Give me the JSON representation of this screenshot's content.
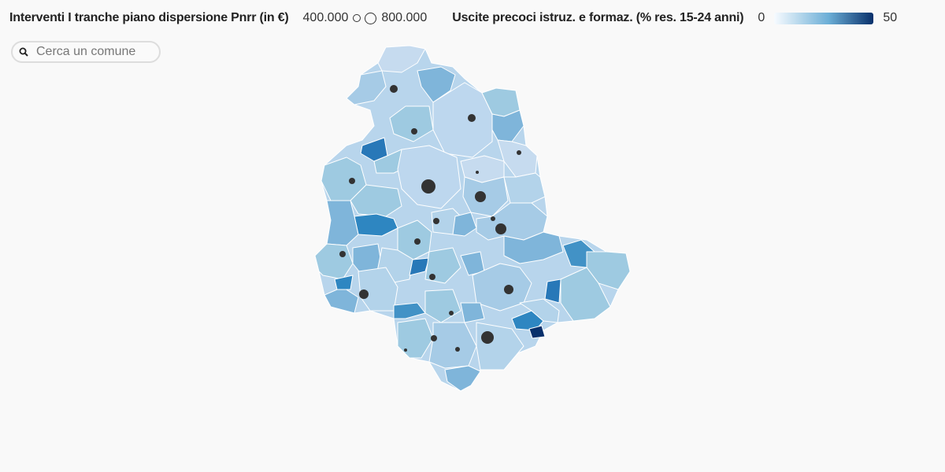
{
  "legend": {
    "size_title": "Interventi I tranche piano dispersione Pnrr (in €)",
    "size_min_label": "400.000",
    "size_max_label": "800.000",
    "color_title": "Uscite precoci istruz. e formaz. (% res. 15-24 anni)",
    "color_min_label": "0",
    "color_max_label": "50",
    "gradient_start": "#f7fbff",
    "gradient_mid": "#6baed6",
    "gradient_end": "#08306b"
  },
  "search": {
    "placeholder": "Cerca un comune",
    "icon": "search-icon"
  },
  "map_colors": {
    "lightest": "#c6dbef",
    "light": "#b3d3ea",
    "medium": "#9ecae1",
    "mediumdark": "#7fb5da",
    "dark": "#4292c6",
    "darker": "#2878b8",
    "darkest": "#08306b",
    "bubble": "#333333"
  }
}
